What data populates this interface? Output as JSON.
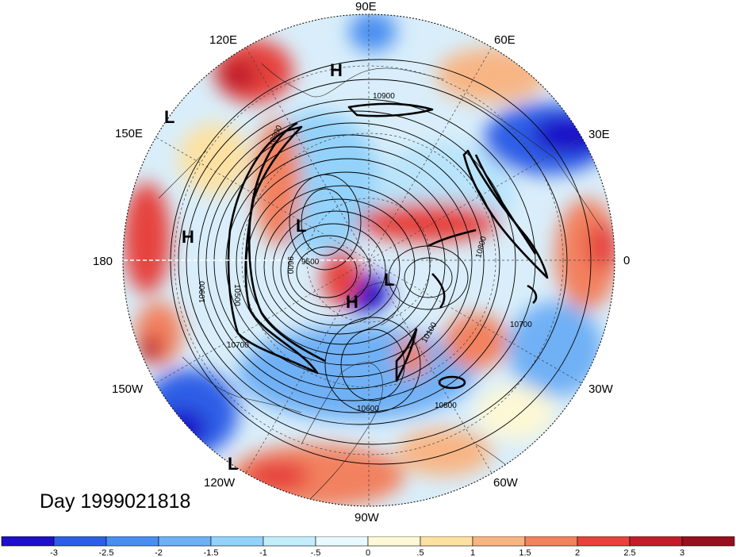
{
  "title": "Day 1999021818",
  "map": {
    "projection": "north polar stereographic",
    "longitude_labels": [
      {
        "text": "90E"
      },
      {
        "text": "60E"
      },
      {
        "text": "30E"
      },
      {
        "text": "0"
      },
      {
        "text": "30W"
      },
      {
        "text": "60W"
      },
      {
        "text": "90W"
      },
      {
        "text": "120W"
      },
      {
        "text": "150W"
      },
      {
        "text": "180"
      },
      {
        "text": "150E"
      },
      {
        "text": "120E"
      }
    ],
    "pressure_centers": [
      {
        "type": "H"
      },
      {
        "type": "L"
      },
      {
        "type": "H"
      },
      {
        "type": "L"
      },
      {
        "type": "L"
      },
      {
        "type": "H"
      },
      {
        "type": "L"
      }
    ],
    "contour_labels": [
      "10900",
      "10900",
      "10800",
      "10700",
      "10500",
      "9600",
      "9500",
      "10100",
      "10800",
      "10800",
      "10700",
      "10600"
    ]
  },
  "colorbar": {
    "tick_labels": [
      "-3",
      "-2.5",
      "-2",
      "-1.5",
      "-1",
      "-.5",
      "0",
      ".5",
      "1",
      "1.5",
      "2",
      "2.5",
      "3"
    ],
    "colors": [
      "#1e10c8",
      "#2e5ee6",
      "#4a8ef0",
      "#6fb0f5",
      "#93d2fa",
      "#c4edfc",
      "#e9f9fd",
      "#fdf8d6",
      "#fde1a3",
      "#f8b584",
      "#f2815f",
      "#e6433c",
      "#c11e2a",
      "#95111d"
    ]
  }
}
